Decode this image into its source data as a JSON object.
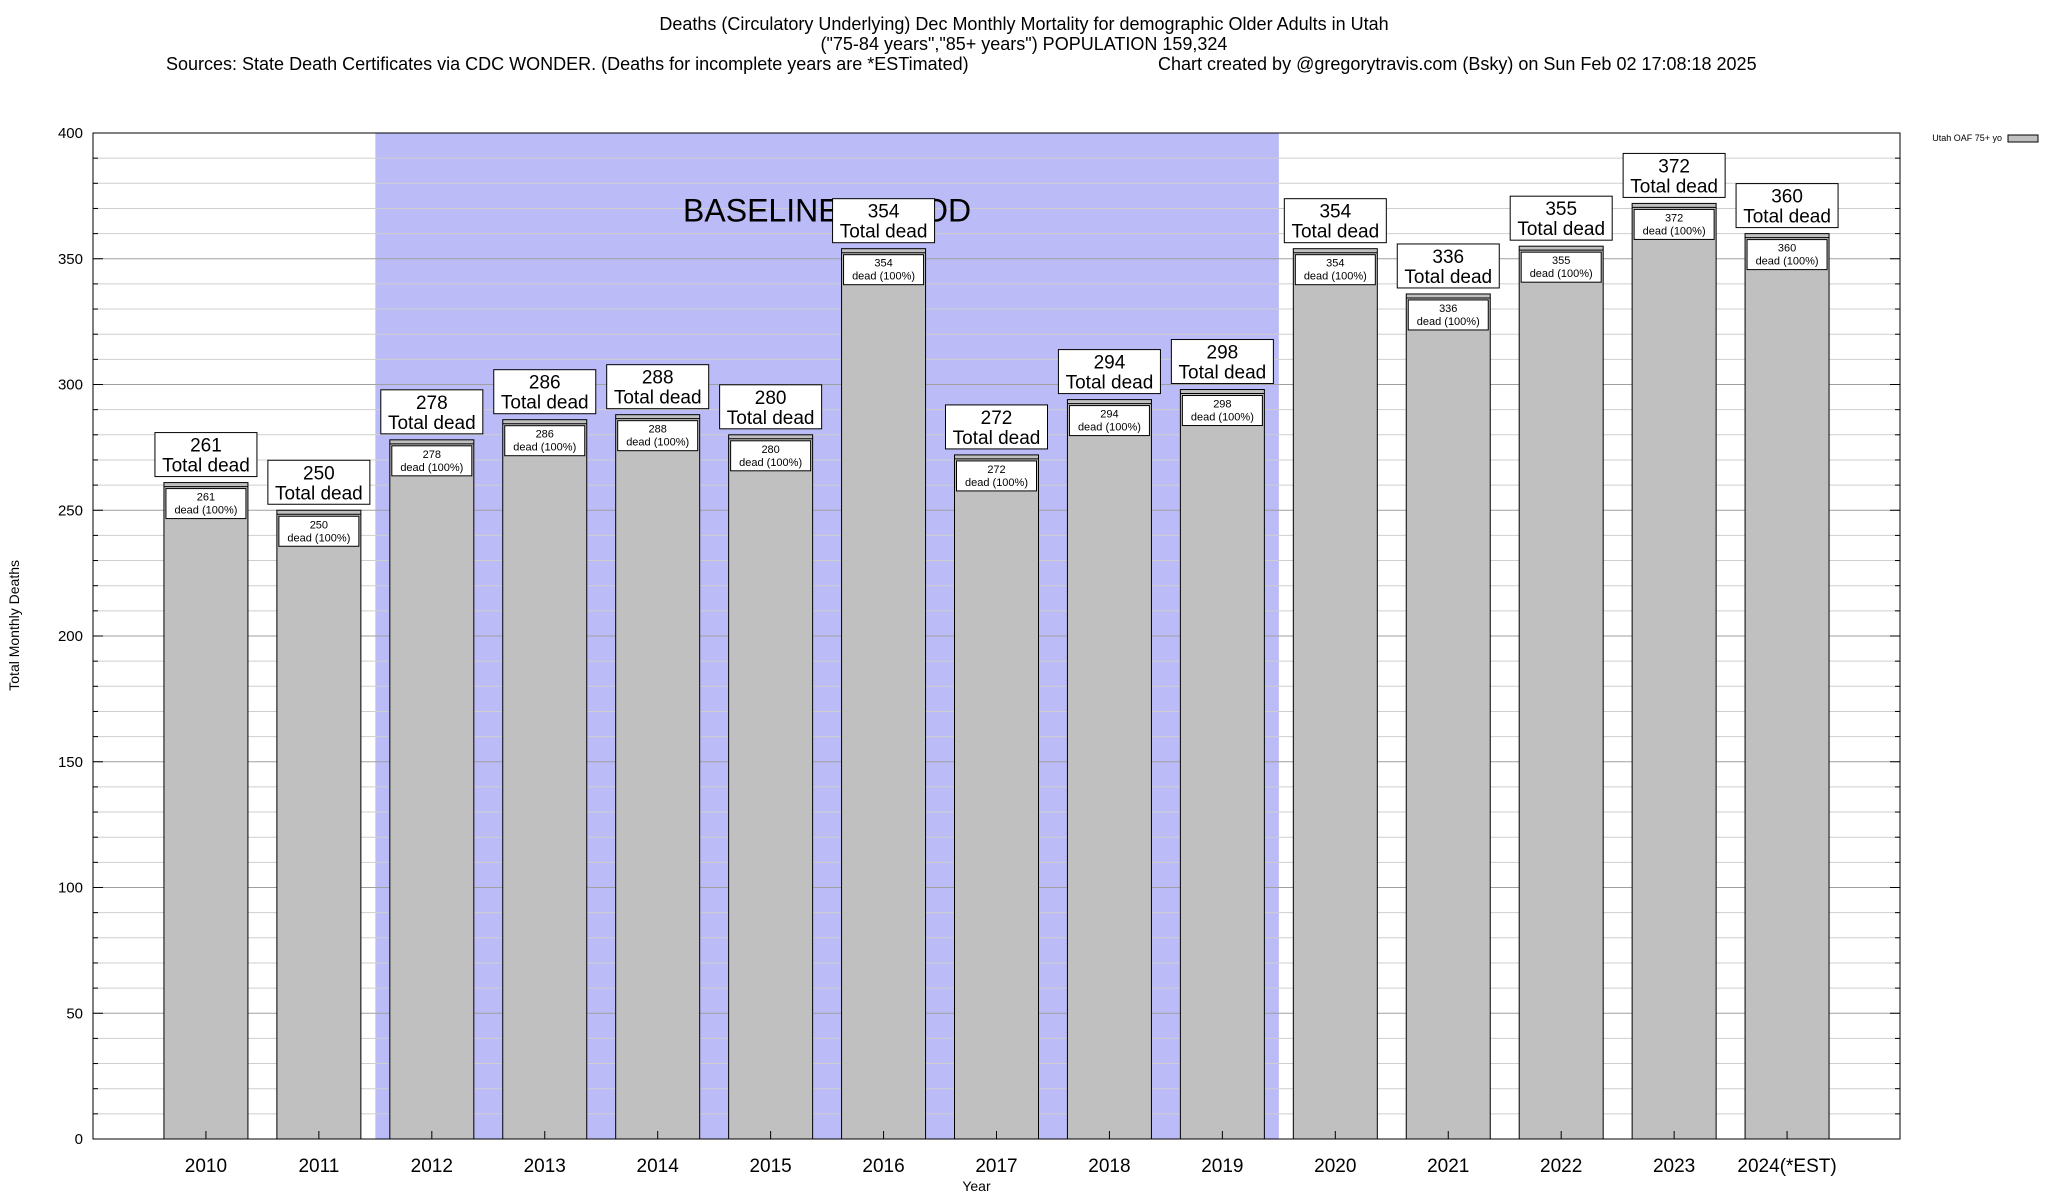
{
  "chart_data": {
    "type": "bar",
    "title": "Deaths (Circulatory Underlying) Dec Monthly Mortality for demographic Older Adults in Utah",
    "subtitle": "(\"75-84 years\",\"85+ years\") POPULATION 159,324",
    "sources": "Sources: State Death Certificates via CDC WONDER. (Deaths for incomplete years are *ESTimated)",
    "credit": "Chart created by @gregorytravis.com (Bsky) on Sun Feb 02 17:08:18 2025",
    "xlabel": "Year",
    "ylabel": "Total Monthly Deaths",
    "ylim": [
      0,
      400
    ],
    "yticks": [
      0,
      50,
      100,
      150,
      200,
      250,
      300,
      350,
      400
    ],
    "categories": [
      "2010",
      "2011",
      "2012",
      "2013",
      "2014",
      "2015",
      "2016",
      "2017",
      "2018",
      "2019",
      "2020",
      "2021",
      "2022",
      "2023",
      "2024(*EST)"
    ],
    "series": [
      {
        "name": "Utah OAF 75+ yo",
        "values": [
          261,
          250,
          278,
          286,
          288,
          280,
          354,
          272,
          294,
          298,
          354,
          336,
          355,
          372,
          360
        ],
        "color": "#c0c0c0"
      }
    ],
    "label_outer_suffix": "Total dead",
    "label_inner_suffix": "dead (100%)",
    "baseline": {
      "label": "BASELINE PERIOD",
      "from": "2012",
      "to": "2019",
      "color": "#bbbbf8"
    },
    "legend_position": "top-right",
    "grid": "horizontal"
  }
}
